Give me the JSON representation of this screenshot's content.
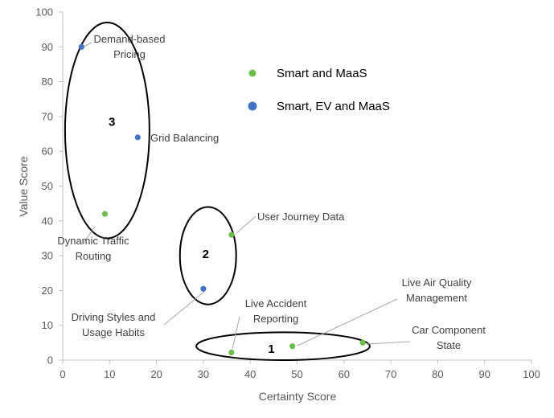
{
  "chart_data": {
    "type": "scatter",
    "xlabel": "Certainty Score",
    "ylabel": "Value Score",
    "xlim": [
      0,
      100
    ],
    "ylim": [
      0,
      100
    ],
    "x_ticks": [
      "0",
      "10",
      "20",
      "30",
      "40",
      "50",
      "60",
      "70",
      "80",
      "90",
      "100"
    ],
    "y_ticks": [
      "0",
      "10",
      "20",
      "30",
      "40",
      "50",
      "60",
      "70",
      "80",
      "90",
      "100"
    ],
    "grid": false,
    "legend_position": "upper-middle",
    "series": [
      {
        "name": "Smart and MaaS",
        "color": "#6ABF4B",
        "points": [
          {
            "x": 9,
            "y": 42,
            "label": [
              "Dynamic Traffic",
              "Routing"
            ]
          },
          {
            "x": 36,
            "y": 36,
            "label": [
              "User Journey Data"
            ]
          },
          {
            "x": 36,
            "y": 2.2,
            "label": [
              "Live Accident",
              "Reporting"
            ]
          },
          {
            "x": 49,
            "y": 4,
            "label": [
              "Live Air Quality",
              "Management"
            ]
          },
          {
            "x": 64,
            "y": 5,
            "label": [
              "Car Component",
              "State"
            ]
          }
        ]
      },
      {
        "name": "Smart, EV and MaaS",
        "color": "#4472C4",
        "points": [
          {
            "x": 4,
            "y": 90,
            "label": [
              "Demand-based",
              "Pricing"
            ]
          },
          {
            "x": 16,
            "y": 64,
            "label": [
              "Grid Balancing"
            ]
          },
          {
            "x": 30,
            "y": 20.5,
            "label": [
              "Driving Styles and",
              "Usage Habits"
            ]
          }
        ]
      }
    ],
    "groups": [
      {
        "label": "3",
        "cx": 9.5,
        "cy": 66,
        "rx": 9,
        "ry": 31
      },
      {
        "label": "2",
        "cx": 31,
        "cy": 30,
        "rx": 6,
        "ry": 14
      },
      {
        "label": "1",
        "cx": 47,
        "cy": 4,
        "rx": 18.5,
        "ry": 4
      }
    ]
  }
}
